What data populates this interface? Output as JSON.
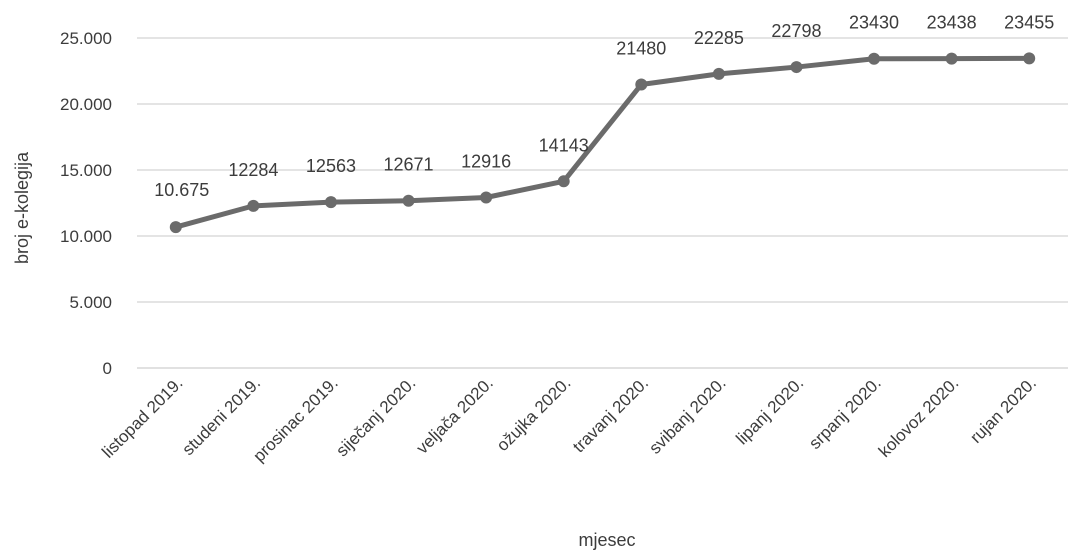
{
  "chart_data": {
    "type": "line",
    "title": "",
    "xlabel": "mjesec",
    "ylabel": "broj e-kolegija",
    "ylim": [
      0,
      25000
    ],
    "yticks": [
      0,
      5000,
      10000,
      15000,
      20000,
      25000
    ],
    "ytick_labels": [
      "0",
      "5.000",
      "10.000",
      "15.000",
      "20.000",
      "25.000"
    ],
    "grid": true,
    "legend": "none",
    "line_color": "#6b6b6b",
    "categories": [
      "listopad 2019.",
      "studeni 2019.",
      "prosinac 2019.",
      "siječanj 2020.",
      "veljača 2020.",
      "ožujka 2020.",
      "travanj 2020.",
      "svibanj 2020.",
      "lipanj 2020.",
      "srpanj 2020.",
      "kolovoz 2020.",
      "rujan 2020."
    ],
    "values": [
      10675,
      12284,
      12563,
      12671,
      12916,
      14143,
      21480,
      22285,
      22798,
      23430,
      23438,
      23455
    ],
    "data_labels": [
      "10.675",
      "12284",
      "12563",
      "12671",
      "12916",
      "14143",
      "21480",
      "22285",
      "22798",
      "23430",
      "23438",
      "23455"
    ]
  }
}
